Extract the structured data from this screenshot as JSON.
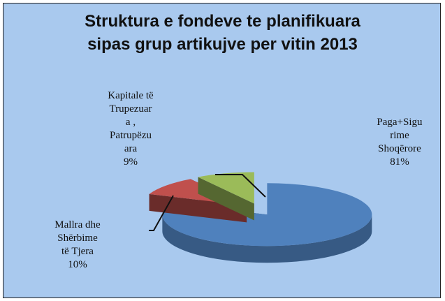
{
  "chart_data": {
    "type": "pie",
    "title": "Struktura  e fondeve te planifikuara\nsipas grup artikujve  per vitin 2013",
    "categories": [
      "Paga+Sigu\nrime\nShoqërore",
      "Mallra dhe\nShërbime\ntë Tjera",
      "Kapitale të\nTrupezuar\na ,\nPatrupëzu\nara"
    ],
    "values": [
      81,
      10,
      9
    ],
    "value_labels": [
      "81%",
      "10%",
      "9%"
    ],
    "colors": [
      "#4f81bd",
      "#c0504d",
      "#9bbb59"
    ]
  }
}
